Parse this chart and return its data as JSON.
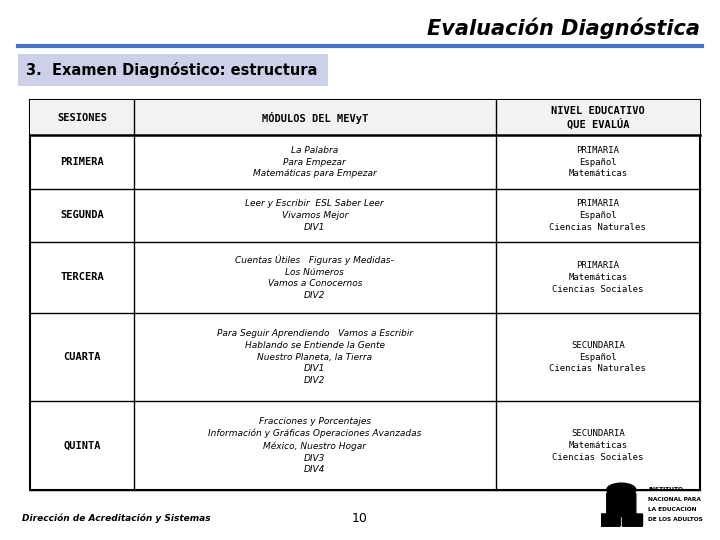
{
  "title": "Evaluación Diagnóstica",
  "subtitle": "3.  Examen Diagnóstico: estructura",
  "bg_color": "#ffffff",
  "title_color": "#000000",
  "blue_line_color": "#4472c4",
  "subtitle_bg": "#ccd0e8",
  "col_headers": [
    "SESIONES",
    "MÓDULOS DEL MEVyT",
    "NIVEL EDUCATIVO\nQUE EVALÚA"
  ],
  "rows": [
    {
      "sesion": "PRIMERA",
      "modulos": "La Palabra\nPara Empezar\nMatemáticas para Empezar",
      "nivel": "PRIMARIA\nEspañol\nMatemáticas"
    },
    {
      "sesion": "SEGUNDA",
      "modulos": "Leer y Escribir  ESL Saber Leer\nVivamos Mejor\nDIV1",
      "nivel": "PRIMARIA\nEspañol\nCiencias Naturales"
    },
    {
      "sesion": "TERCERA",
      "modulos": "Cuentas Útiles   Figuras y Medidas-\nLos Números\nVamos a Conocernos\nDIV2",
      "nivel": "PRIMARIA\nMatemáticas\nCiencias Sociales"
    },
    {
      "sesion": "CUARTA",
      "modulos": "Para Seguir Aprendiendo   Vamos a Escribir\nHablando se Entiende la Gente\nNuestro Planeta, la Tierra\nDIV1\nDIV2",
      "nivel": "SECUNDARIA\nEspañol\nCiencias Naturales"
    },
    {
      "sesion": "QUINTA",
      "modulos": "Fracciones y Porcentajes\nInformación y Gráficas Operaciones Avanzadas\nMéxico, Nuestro Hogar\nDIV3\nDIV4",
      "nivel": "SECUNDARIA\nMatemáticas\nCiencias Sociales"
    }
  ],
  "footer_left": "Dirección de Acreditación y Sistemas",
  "footer_center": "10",
  "row_line_counts": [
    2,
    3,
    3,
    4,
    5,
    5
  ]
}
